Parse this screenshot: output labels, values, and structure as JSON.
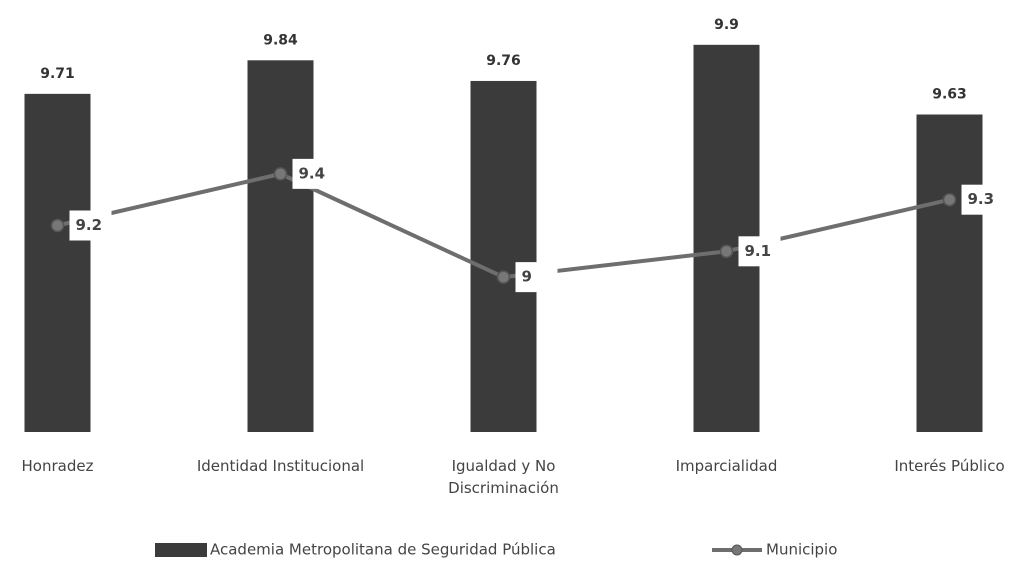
{
  "chart_data": {
    "type": "bar",
    "categories": [
      "Honradez",
      "Identidad Institucional",
      "Igualdad y No Discriminación",
      "Imparcialidad",
      "Interés Público"
    ],
    "series": [
      {
        "name": "Academia Metropolitana de Seguridad Pública",
        "type": "bar",
        "color": "#3b3b3b",
        "values": [
          9.71,
          9.84,
          9.76,
          9.9,
          9.63
        ]
      },
      {
        "name": "Municipio",
        "type": "line",
        "color": "#6e6e6e",
        "values": [
          9.2,
          9.4,
          9,
          9.1,
          9.3
        ]
      }
    ],
    "ylim": [
      8.4,
      10.0
    ],
    "legend": "bottom"
  }
}
